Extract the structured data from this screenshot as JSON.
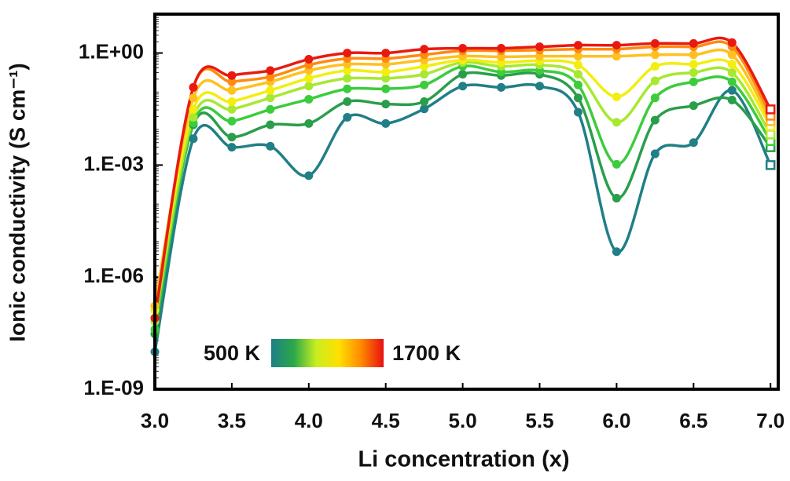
{
  "chart_data": {
    "type": "line",
    "ylabel": "Ionic conductivity (S cm⁻¹)",
    "xlabel": "Li concentration (x)",
    "x": [
      3.0,
      3.25,
      3.5,
      3.75,
      4.0,
      4.25,
      4.5,
      4.75,
      5.0,
      5.25,
      5.5,
      5.75,
      6.0,
      6.25,
      6.5,
      6.75,
      7.0
    ],
    "xlim": [
      3.0,
      7.05
    ],
    "xticks": [
      {
        "value": 3,
        "label": "3.0"
      },
      {
        "value": 3.5,
        "label": "3.5"
      },
      {
        "value": 4,
        "label": "4.0"
      },
      {
        "value": 4.5,
        "label": "4.5"
      },
      {
        "value": 5,
        "label": "5.0"
      },
      {
        "value": 5.5,
        "label": "5.5"
      },
      {
        "value": 6,
        "label": "6.0"
      },
      {
        "value": 6.5,
        "label": "6.5"
      },
      {
        "value": 7,
        "label": "7.0"
      }
    ],
    "ylog": true,
    "ylim": [
      1e-09,
      11
    ],
    "yticks": [
      {
        "value": 1e-09,
        "label": "1.E-09"
      },
      {
        "value": 1e-06,
        "label": "1.E-06"
      },
      {
        "value": 0.001,
        "label": "1.E-03"
      },
      {
        "value": 1,
        "label": "1.E+00"
      }
    ],
    "grid": false,
    "colorbar": {
      "min_label": "500 K",
      "max_label": "1700 K",
      "colors": [
        "#1f7f85",
        "#2aa84a",
        "#c8ee20",
        "#ffe000",
        "#ff8a00",
        "#e81010"
      ]
    },
    "series": [
      {
        "color": "#217f86",
        "values": [
          1e-08,
          0.0051,
          0.003,
          0.0032,
          0.00052,
          0.019,
          0.013,
          0.032,
          0.13,
          0.12,
          0.13,
          0.026,
          4.8e-06,
          0.002,
          0.004,
          0.1,
          0.001
        ]
      },
      {
        "color": "#2a9e4a",
        "values": [
          3e-08,
          0.012,
          0.0056,
          0.012,
          0.013,
          0.05,
          0.043,
          0.05,
          0.27,
          0.25,
          0.27,
          0.063,
          0.00013,
          0.016,
          0.039,
          0.055,
          0.003
        ]
      },
      {
        "color": "#3ccc3c",
        "values": [
          4e-08,
          0.0135,
          0.015,
          0.031,
          0.058,
          0.11,
          0.11,
          0.14,
          0.44,
          0.31,
          0.34,
          0.14,
          0.00105,
          0.063,
          0.17,
          0.17,
          0.0044
        ]
      },
      {
        "color": "#a8e830",
        "values": [
          6.5e-08,
          0.019,
          0.031,
          0.063,
          0.13,
          0.21,
          0.21,
          0.27,
          0.56,
          0.44,
          0.48,
          0.27,
          0.014,
          0.18,
          0.3,
          0.3,
          0.0066
        ]
      },
      {
        "color": "#f2ee10",
        "values": [
          1.3e-07,
          0.031,
          0.05,
          0.1,
          0.21,
          0.34,
          0.31,
          0.44,
          0.65,
          0.56,
          0.62,
          0.48,
          0.067,
          0.44,
          0.5,
          0.5,
          0.011
        ]
      },
      {
        "color": "#ffc020",
        "values": [
          1.7e-07,
          0.063,
          0.1,
          0.17,
          0.34,
          0.5,
          0.5,
          0.65,
          0.82,
          0.79,
          0.82,
          0.82,
          0.82,
          0.9,
          0.9,
          0.9,
          0.015
        ]
      },
      {
        "color": "#ff8a10",
        "values": [
          8e-08,
          0.12,
          0.17,
          0.23,
          0.48,
          0.71,
          0.71,
          0.9,
          1.15,
          1.15,
          1.2,
          1.27,
          1.27,
          1.47,
          1.47,
          1.47,
          0.021
        ]
      },
      {
        "color": "#e81a10",
        "values": [
          8e-08,
          0.12,
          0.25,
          0.34,
          0.68,
          1.0,
          1.0,
          1.27,
          1.34,
          1.34,
          1.47,
          1.62,
          1.62,
          1.8,
          1.8,
          1.9,
          0.031
        ]
      }
    ]
  }
}
